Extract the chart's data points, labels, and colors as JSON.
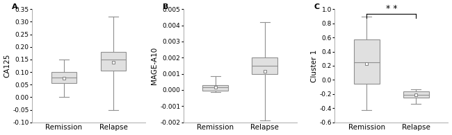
{
  "panels": [
    {
      "label": "A",
      "ylabel": "CA125",
      "categories": [
        "Remission",
        "Relapse"
      ],
      "ylim": [
        -0.1,
        0.35
      ],
      "yticks": [
        -0.1,
        -0.05,
        0.0,
        0.05,
        0.1,
        0.15,
        0.2,
        0.25,
        0.3,
        0.35
      ],
      "ytick_labels": [
        "-0.10",
        "-0.05",
        "0.00",
        "0.05",
        "0.10",
        "0.15",
        "0.20",
        "0.25",
        "0.30",
        "0.35"
      ],
      "boxes": [
        {
          "q1": 0.055,
          "median": 0.078,
          "q3": 0.1,
          "whislo": 0.0,
          "whishi": 0.15,
          "mean": 0.075
        },
        {
          "q1": 0.105,
          "median": 0.15,
          "q3": 0.18,
          "whislo": -0.05,
          "whishi": 0.32,
          "mean": 0.138
        }
      ],
      "significance": null
    },
    {
      "label": "B",
      "ylabel": "MAGE-A10",
      "categories": [
        "Remission",
        "Relapse"
      ],
      "ylim": [
        -0.002,
        0.005
      ],
      "yticks": [
        -0.002,
        -0.001,
        0.0,
        0.001,
        0.002,
        0.003,
        0.004,
        0.005
      ],
      "ytick_labels": [
        "-0.002",
        "-0.001",
        "0.000",
        "0.001",
        "0.002",
        "0.003",
        "0.004",
        "0.005"
      ],
      "boxes": [
        {
          "q1": -5e-05,
          "median": 0.00015,
          "q3": 0.00028,
          "whislo": -0.00015,
          "whishi": 0.00085,
          "mean": 0.00015
        },
        {
          "q1": 0.001,
          "median": 0.0015,
          "q3": 0.002,
          "whislo": -0.0019,
          "whishi": 0.0042,
          "mean": 0.00115
        }
      ],
      "significance": null
    },
    {
      "label": "C",
      "ylabel": "Cluster 1",
      "categories": [
        "Remission",
        "Relapse"
      ],
      "ylim": [
        -0.6,
        1.0
      ],
      "yticks": [
        -0.6,
        -0.4,
        -0.2,
        0.0,
        0.2,
        0.4,
        0.6,
        0.8,
        1.0
      ],
      "ytick_labels": [
        "-0.6",
        "-0.4",
        "-0.2",
        "0.0",
        "0.2",
        "0.4",
        "0.6",
        "0.8",
        "1.0"
      ],
      "boxes": [
        {
          "q1": -0.05,
          "median": 0.25,
          "q3": 0.57,
          "whislo": -0.43,
          "whishi": 0.9,
          "mean": 0.23
        },
        {
          "q1": -0.255,
          "median": -0.215,
          "q3": -0.165,
          "whislo": -0.335,
          "whishi": -0.13,
          "mean": -0.215
        }
      ],
      "significance": "* *"
    }
  ],
  "box_facecolor": "#e0e0e0",
  "box_edge_color": "#909090",
  "whisker_color": "#909090",
  "mean_marker_size": 3.5,
  "mean_marker_color": "white",
  "mean_marker_edge_color": "#808080",
  "label_fontsize": 8,
  "tick_fontsize": 6.5,
  "ylabel_fontsize": 7.5,
  "xlabel_fontsize": 7.5,
  "significance_fontsize": 9
}
